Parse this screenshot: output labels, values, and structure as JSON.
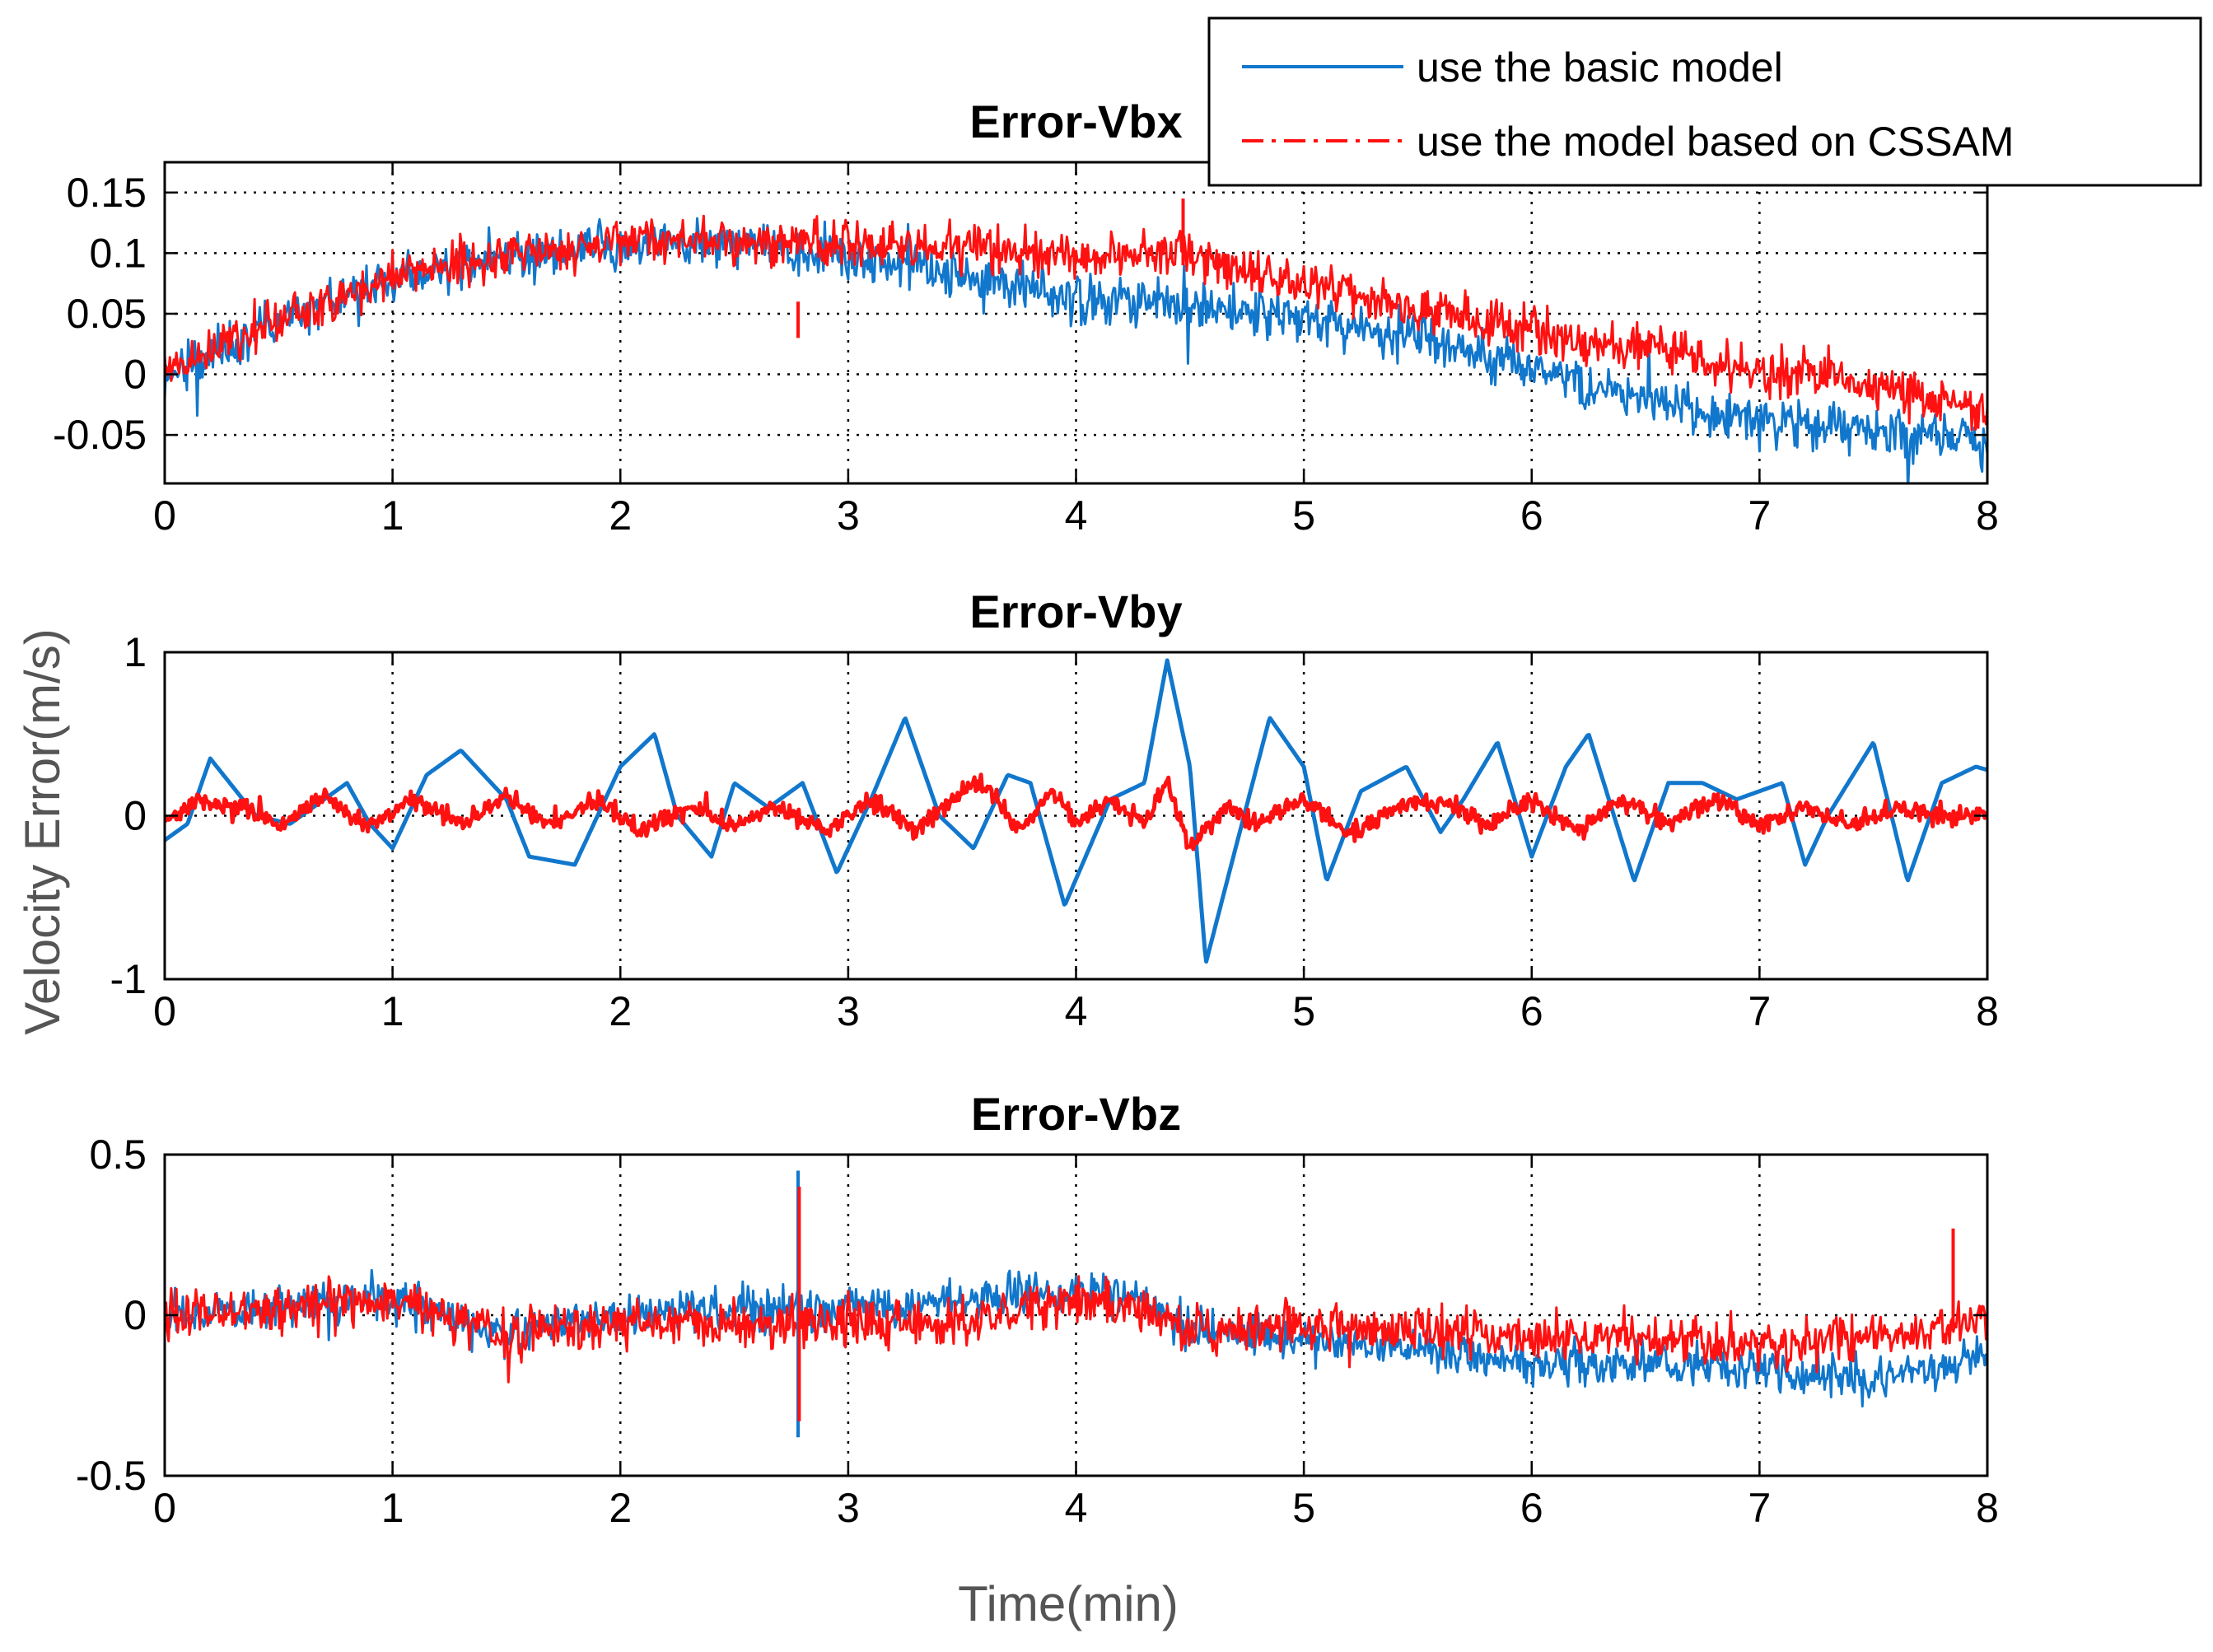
{
  "chart_data": {
    "type": "line",
    "xlabel": "Time(min)",
    "ylabel": "Velocity Error(m/s)",
    "legend": {
      "position": "top-right",
      "entries": [
        {
          "label": "use the basic model",
          "color": "#1177cc",
          "style": "solid"
        },
        {
          "label": "use the model based on CSSAM",
          "color": "#ff1111",
          "style": "dash-dot"
        }
      ]
    },
    "subplots": [
      {
        "title": "Error-Vbx",
        "xlim": [
          0,
          8
        ],
        "ylim": [
          -0.09,
          0.175
        ],
        "xticks": [
          0,
          1,
          2,
          3,
          4,
          5,
          6,
          7,
          8
        ],
        "xtick_labels": [
          "0",
          "1",
          "2",
          "3",
          "4",
          "5",
          "6",
          "7",
          "8"
        ],
        "yticks": [
          -0.05,
          0,
          0.05,
          0.1,
          0.15
        ],
        "ytick_labels": [
          "-0.05",
          "0",
          "0.05",
          "0.1",
          "0.15"
        ],
        "grid": true,
        "series": [
          {
            "name": "use the basic model",
            "noise": 0.012,
            "x": [
              0,
              0.5,
              1,
              1.5,
              2,
              2.5,
              3,
              3.5,
              4,
              4.5,
              5,
              5.5,
              6,
              6.5,
              7,
              7.5,
              8
            ],
            "y": [
              0.0,
              0.045,
              0.08,
              0.097,
              0.11,
              0.108,
              0.098,
              0.082,
              0.062,
              0.058,
              0.047,
              0.03,
              0.005,
              -0.018,
              -0.038,
              -0.045,
              -0.055
            ]
          },
          {
            "name": "use the model based on CSSAM",
            "noise": 0.012,
            "x": [
              0,
              0.5,
              1,
              1.5,
              2,
              2.5,
              3,
              3.5,
              4,
              4.4,
              4.5,
              5,
              5.5,
              6,
              6.5,
              7,
              7.5,
              8
            ],
            "y": [
              0.0,
              0.045,
              0.08,
              0.097,
              0.112,
              0.11,
              0.106,
              0.105,
              0.095,
              0.1,
              0.095,
              0.075,
              0.055,
              0.035,
              0.02,
              0.005,
              -0.008,
              -0.03
            ]
          }
        ]
      },
      {
        "title": "Error-Vby",
        "xlim": [
          0,
          8
        ],
        "ylim": [
          -1,
          1
        ],
        "xticks": [
          0,
          1,
          2,
          3,
          4,
          5,
          6,
          7,
          8
        ],
        "xtick_labels": [
          "0",
          "1",
          "2",
          "3",
          "4",
          "5",
          "6",
          "7",
          "8"
        ],
        "yticks": [
          -1,
          0,
          1
        ],
        "ytick_labels": [
          "-1",
          "0",
          "1"
        ],
        "grid": true,
        "series": [
          {
            "name": "use the basic model",
            "noise": 0.0,
            "x": [
              0,
              0.1,
              0.2,
              0.4,
              0.55,
              0.65,
              0.8,
              0.9,
              1.0,
              1.15,
              1.3,
              1.5,
              1.6,
              1.8,
              2.0,
              2.15,
              2.25,
              2.4,
              2.5,
              2.65,
              2.8,
              2.95,
              3.1,
              3.25,
              3.4,
              3.55,
              3.7,
              3.8,
              3.95,
              4.15,
              4.3,
              4.4,
              4.5,
              4.57,
              4.7,
              4.85,
              5.0,
              5.1,
              5.25,
              5.45,
              5.6,
              5.7,
              5.85,
              6.0,
              6.15,
              6.25,
              6.45,
              6.6,
              6.75,
              6.9,
              7.1,
              7.2,
              7.3,
              7.5,
              7.65,
              7.8,
              7.95,
              8.0
            ],
            "y": [
              -0.15,
              -0.05,
              0.35,
              0.0,
              -0.05,
              0.05,
              0.2,
              -0.05,
              -0.2,
              0.25,
              0.4,
              0.1,
              -0.25,
              -0.3,
              0.3,
              0.5,
              0.0,
              -0.25,
              0.2,
              0.05,
              0.2,
              -0.35,
              0.1,
              0.6,
              0.0,
              -0.2,
              0.25,
              0.2,
              -0.55,
              0.1,
              0.2,
              0.95,
              0.3,
              -0.9,
              -0.2,
              0.6,
              0.3,
              -0.4,
              0.15,
              0.3,
              -0.1,
              0.1,
              0.45,
              -0.25,
              0.3,
              0.5,
              -0.4,
              0.2,
              0.2,
              0.1,
              0.2,
              -0.3,
              0.0,
              0.45,
              -0.4,
              0.2,
              0.3,
              0.28
            ]
          },
          {
            "name": "use the model based on CSSAM",
            "noise": 0.035,
            "x": [
              0,
              0.15,
              0.35,
              0.5,
              0.7,
              0.9,
              1.1,
              1.3,
              1.5,
              1.7,
              1.9,
              2.1,
              2.3,
              2.5,
              2.7,
              2.9,
              3.1,
              3.3,
              3.5,
              3.6,
              3.75,
              3.9,
              4.0,
              4.15,
              4.3,
              4.4,
              4.45,
              4.5,
              4.65,
              4.8,
              5.0,
              5.2,
              5.4,
              5.6,
              5.8,
              6.0,
              6.2,
              6.4,
              6.6,
              6.8,
              7.0,
              7.2,
              7.4,
              7.6,
              7.8,
              8.0
            ],
            "y": [
              -0.05,
              0.1,
              0.05,
              -0.05,
              0.1,
              -0.05,
              0.1,
              -0.05,
              0.1,
              -0.05,
              0.1,
              -0.1,
              0.05,
              -0.05,
              0.05,
              -0.1,
              0.1,
              -0.1,
              0.15,
              0.2,
              -0.1,
              0.15,
              -0.05,
              0.1,
              -0.05,
              0.2,
              0.0,
              -0.2,
              0.05,
              -0.05,
              0.1,
              -0.1,
              0.05,
              0.1,
              -0.05,
              0.1,
              -0.1,
              0.1,
              -0.05,
              0.1,
              -0.05,
              0.05,
              -0.05,
              0.05,
              0.0,
              0.0
            ]
          }
        ]
      },
      {
        "title": "Error-Vbz",
        "xlim": [
          0,
          8
        ],
        "ylim": [
          -0.5,
          0.5
        ],
        "xticks": [
          0,
          1,
          2,
          3,
          4,
          5,
          6,
          7,
          8
        ],
        "xtick_labels": [
          "0",
          "1",
          "2",
          "3",
          "4",
          "5",
          "6",
          "7",
          "8"
        ],
        "yticks": [
          -0.5,
          0,
          0.5
        ],
        "ytick_labels": [
          "-0.5",
          "0",
          "0.5"
        ],
        "grid": true,
        "series": [
          {
            "name": "use the basic model",
            "noise": 0.04,
            "x": [
              0,
              0.5,
              1,
              1.5,
              2,
              2.5,
              3,
              3.5,
              4,
              4.3,
              4.5,
              5,
              5.5,
              6,
              6.5,
              7,
              7.5,
              8
            ],
            "y": [
              0.0,
              0.02,
              0.05,
              -0.06,
              0.0,
              0.02,
              0.02,
              0.05,
              0.08,
              0.05,
              -0.05,
              -0.08,
              -0.1,
              -0.15,
              -0.15,
              -0.17,
              -0.2,
              -0.13
            ]
          },
          {
            "name": "use the model based on CSSAM",
            "noise": 0.045,
            "x": [
              0,
              0.5,
              1,
              1.5,
              2,
              2.5,
              3,
              3.5,
              4,
              4.3,
              4.5,
              5,
              5.5,
              6,
              6.5,
              7,
              7.5,
              8
            ],
            "y": [
              0.0,
              0.02,
              0.05,
              -0.06,
              -0.02,
              -0.03,
              -0.03,
              -0.02,
              0.05,
              0.02,
              -0.05,
              -0.03,
              -0.05,
              -0.07,
              -0.07,
              -0.1,
              -0.07,
              -0.02
            ]
          }
        ]
      }
    ]
  }
}
